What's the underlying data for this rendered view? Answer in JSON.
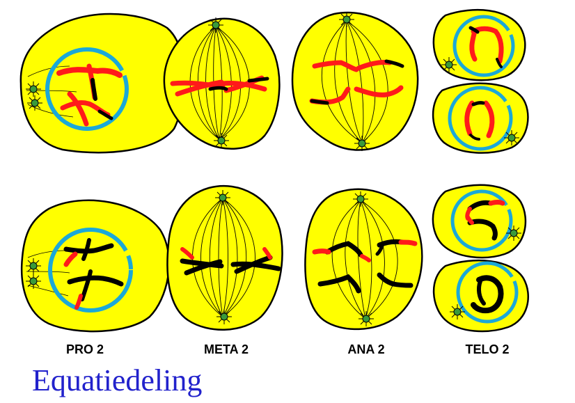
{
  "title": "Equatiedeling",
  "labels": [
    "PRO 2",
    "META 2",
    "ANA 2",
    "TELO 2"
  ],
  "colors": {
    "cell": "#ffff00",
    "nuclear_envelope": "#1ba8d8",
    "chromosome_red": "#ff1a1a",
    "chromosome_black": "#000000",
    "centrosome": "#3a9a3a",
    "outline": "#000000"
  }
}
